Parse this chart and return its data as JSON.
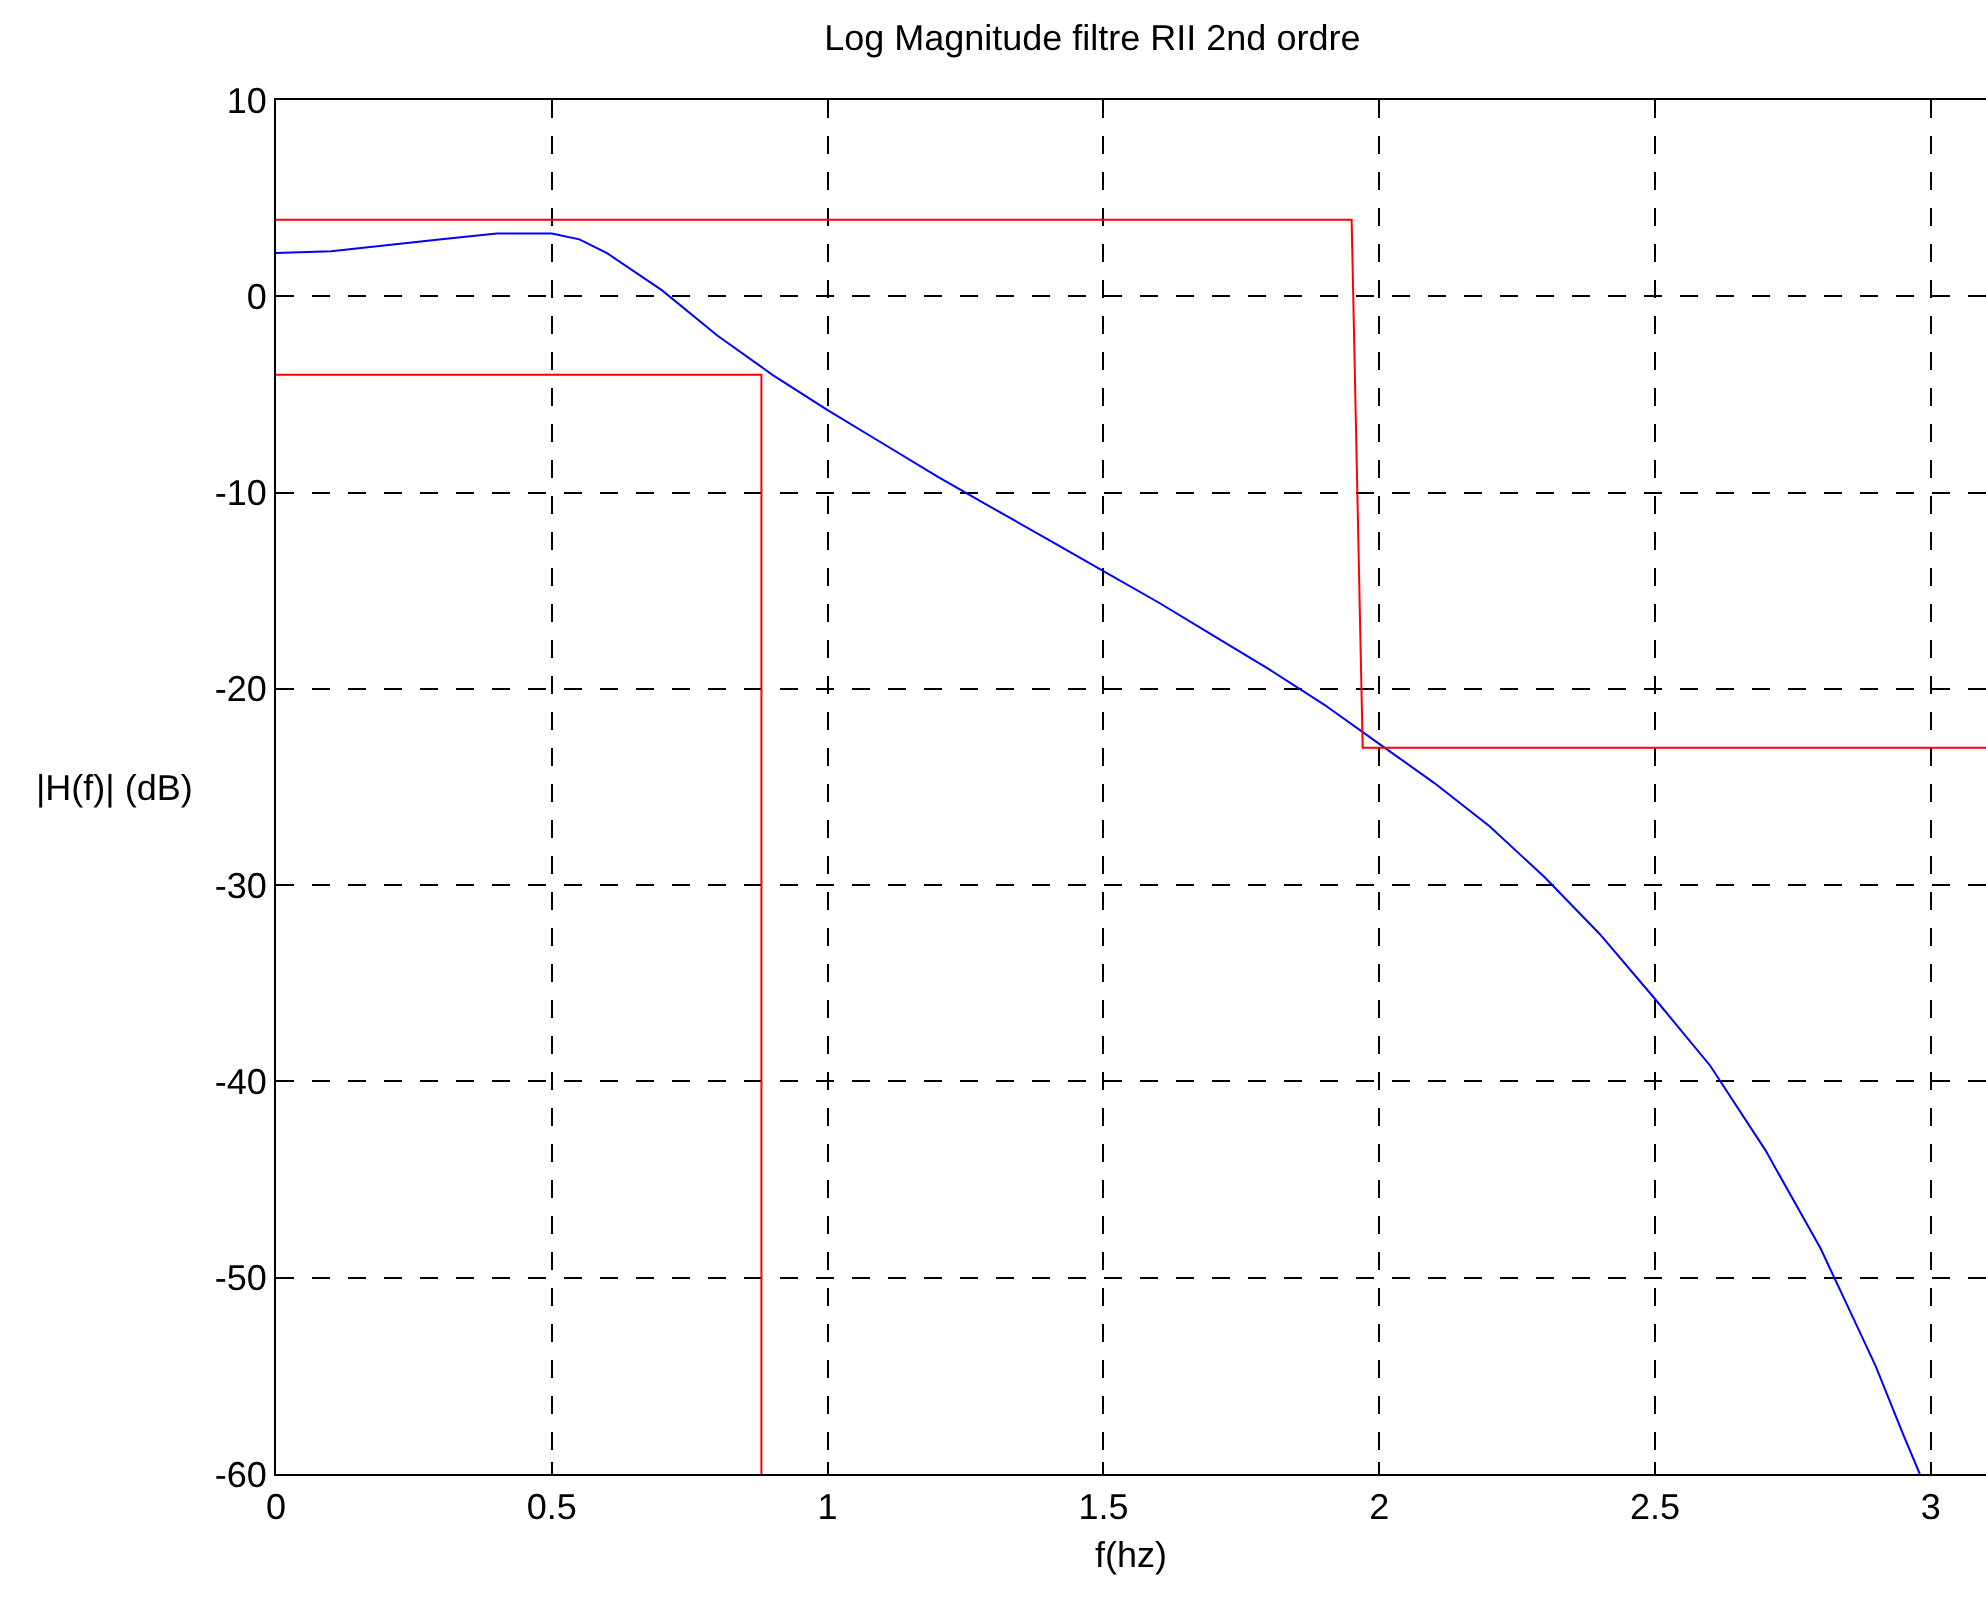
{
  "chart_data": {
    "type": "line",
    "title": "Log Magnitude filtre RII 2nd ordre",
    "xlabel": "f(hz)",
    "ylabel": "|H(f)| (dB)",
    "xlim": [
      0,
      3.1
    ],
    "ylim": [
      -60,
      10
    ],
    "xticks": [
      0,
      0.5,
      1,
      1.5,
      2,
      2.5,
      3
    ],
    "yticks": [
      -60,
      -50,
      -40,
      -30,
      -20,
      -10,
      0,
      10
    ],
    "grid": true,
    "line_style": "solid",
    "marker": "none",
    "series": [
      {
        "color": "#0000ff",
        "x": [
          0,
          0.1,
          0.2,
          0.3,
          0.4,
          0.5,
          0.55,
          0.6,
          0.7,
          0.8,
          0.9,
          1.0,
          1.1,
          1.2,
          1.3,
          1.4,
          1.5,
          1.6,
          1.7,
          1.8,
          1.9,
          2.0,
          2.1,
          2.2,
          2.3,
          2.4,
          2.5,
          2.6,
          2.7,
          2.8,
          2.85,
          2.9,
          2.95,
          2.98
        ],
        "values": [
          2.2,
          2.3,
          2.6,
          2.9,
          3.2,
          3.2,
          2.9,
          2.2,
          0.3,
          -2,
          -4,
          -5.8,
          -7.5,
          -9.2,
          -10.8,
          -12.4,
          -14,
          -15.6,
          -17.3,
          -19,
          -20.8,
          -22.8,
          -24.8,
          -27,
          -29.6,
          -32.5,
          -35.8,
          -39.2,
          -43.5,
          -48.5,
          -51.5,
          -54.5,
          -58,
          -60
        ]
      },
      {
        "color": "#ff0000",
        "x": [
          0,
          1.95,
          1.97,
          3.1
        ],
        "values": [
          3.9,
          3.9,
          -23,
          -23
        ]
      },
      {
        "color": "#ff0000",
        "x": [
          0,
          0.88,
          0.88
        ],
        "values": [
          -4,
          -4,
          -60
        ]
      }
    ]
  }
}
